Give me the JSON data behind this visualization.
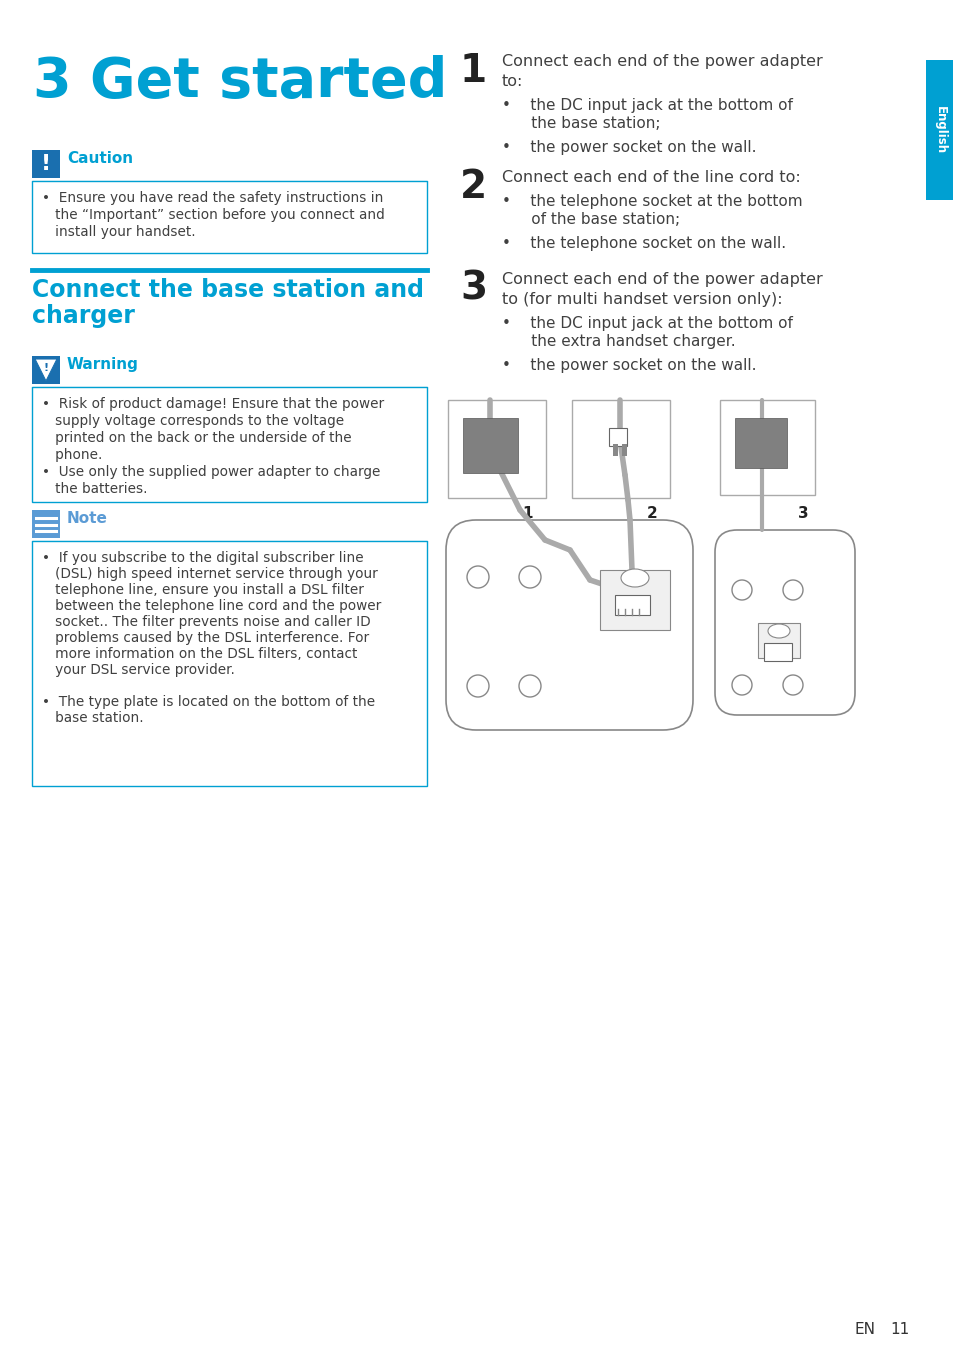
{
  "bg_color": "#ffffff",
  "page_title_3": "3",
  "page_title_text": "Get started",
  "page_title_color": "#00a0d2",
  "section_title_line1": "Connect the base station and",
  "section_title_line2": "charger",
  "section_title_color": "#00a0d2",
  "caution_label": "Caution",
  "caution_color": "#00a0d2",
  "caution_icon_color": "#1a6faf",
  "caution_text_line1": "•  Ensure you have read the safety instructions in",
  "caution_text_line2": "   the “Important” section before you connect and",
  "caution_text_line3": "   install your handset.",
  "warning_label": "Warning",
  "warning_color": "#00a0d2",
  "warning_text_line1": "•  Risk of product damage! Ensure that the power",
  "warning_text_line2": "   supply voltage corresponds to the voltage",
  "warning_text_line3": "   printed on the back or the underside of the",
  "warning_text_line4": "   phone.",
  "warning_text_line5": "•  Use only the supplied power adapter to charge",
  "warning_text_line6": "   the batteries.",
  "note_label": "Note",
  "note_color": "#5b9bd5",
  "note_icon_color": "#5b9bd5",
  "note_text_line1": "•  If you subscribe to the digital subscriber line",
  "note_text_line2": "   (DSL) high speed internet service through your",
  "note_text_line3": "   telephone line, ensure you install a DSL filter",
  "note_text_line4": "   between the telephone line cord and the power",
  "note_text_line5": "   socket.. The filter prevents noise and caller ID",
  "note_text_line6": "   problems caused by the DSL interference. For",
  "note_text_line7": "   more information on the DSL filters, contact",
  "note_text_line8": "   your DSL service provider.",
  "note_text_line9": "•  The type plate is located on the bottom of the",
  "note_text_line10": "   base station.",
  "step1_num": "1",
  "step1_line1": "Connect each end of the power adapter",
  "step1_line2": "to:",
  "step1_b1_line1": "•    the DC input jack at the bottom of",
  "step1_b1_line2": "      the base station;",
  "step1_b2": "•    the power socket on the wall.",
  "step2_num": "2",
  "step2_line1": "Connect each end of the line cord to:",
  "step2_b1_line1": "•    the telephone socket at the bottom",
  "step2_b1_line2": "      of the base station;",
  "step2_b2": "•    the telephone socket on the wall.",
  "step3_num": "3",
  "step3_line1": "Connect each end of the power adapter",
  "step3_line2": "to (for multi handset version only):",
  "step3_b1_line1": "•    the DC input jack at the bottom of",
  "step3_b1_line2": "      the extra handset charger.",
  "step3_b2": "•    the power socket on the wall.",
  "tab_color": "#00a0d2",
  "tab_text": "English",
  "footer_en": "EN",
  "footer_num": "11",
  "box_border_color": "#00a0d2",
  "text_color": "#404040",
  "dark_gray": "#707070",
  "med_gray": "#999999",
  "light_gray": "#cccccc"
}
